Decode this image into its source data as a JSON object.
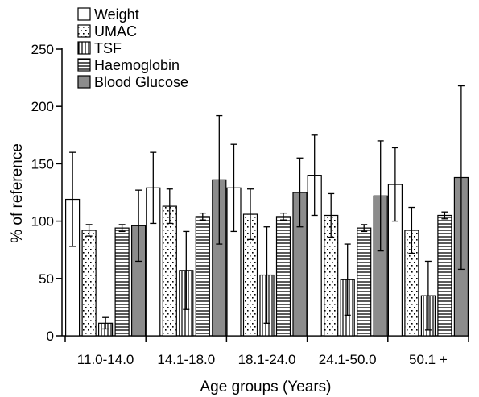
{
  "chart_data": {
    "type": "bar",
    "title": "",
    "xlabel": "Age groups (Years)",
    "ylabel": "% of reference",
    "ylim": [
      0,
      250
    ],
    "yticks": [
      0,
      50,
      100,
      150,
      200,
      250
    ],
    "grid": false,
    "legend_position": "top-left",
    "categories": [
      "11.0-14.0",
      "14.1-18.0",
      "18.1-24.0",
      "24.1-50.0",
      "50.1 +"
    ],
    "series": [
      {
        "name": "Weight",
        "pattern": "white",
        "values": [
          119,
          129,
          129,
          140,
          132
        ],
        "errors": [
          41,
          31,
          38,
          35,
          32
        ]
      },
      {
        "name": "UMAC",
        "pattern": "dots",
        "values": [
          92,
          113,
          106,
          105,
          92
        ],
        "errors": [
          5,
          15,
          22,
          19,
          20
        ]
      },
      {
        "name": "TSF",
        "pattern": "vertical-lines",
        "values": [
          11,
          57,
          53,
          49,
          35
        ],
        "errors": [
          5,
          34,
          42,
          31,
          30
        ]
      },
      {
        "name": "Haemoglobin",
        "pattern": "horizontal-lines",
        "values": [
          94,
          104,
          104,
          94,
          105
        ],
        "errors": [
          3,
          3,
          3,
          3,
          3
        ]
      },
      {
        "name": "Blood Glucose",
        "pattern": "gray",
        "values": [
          96,
          136,
          125,
          122,
          138
        ],
        "errors": [
          31,
          56,
          30,
          48,
          80
        ]
      }
    ]
  }
}
